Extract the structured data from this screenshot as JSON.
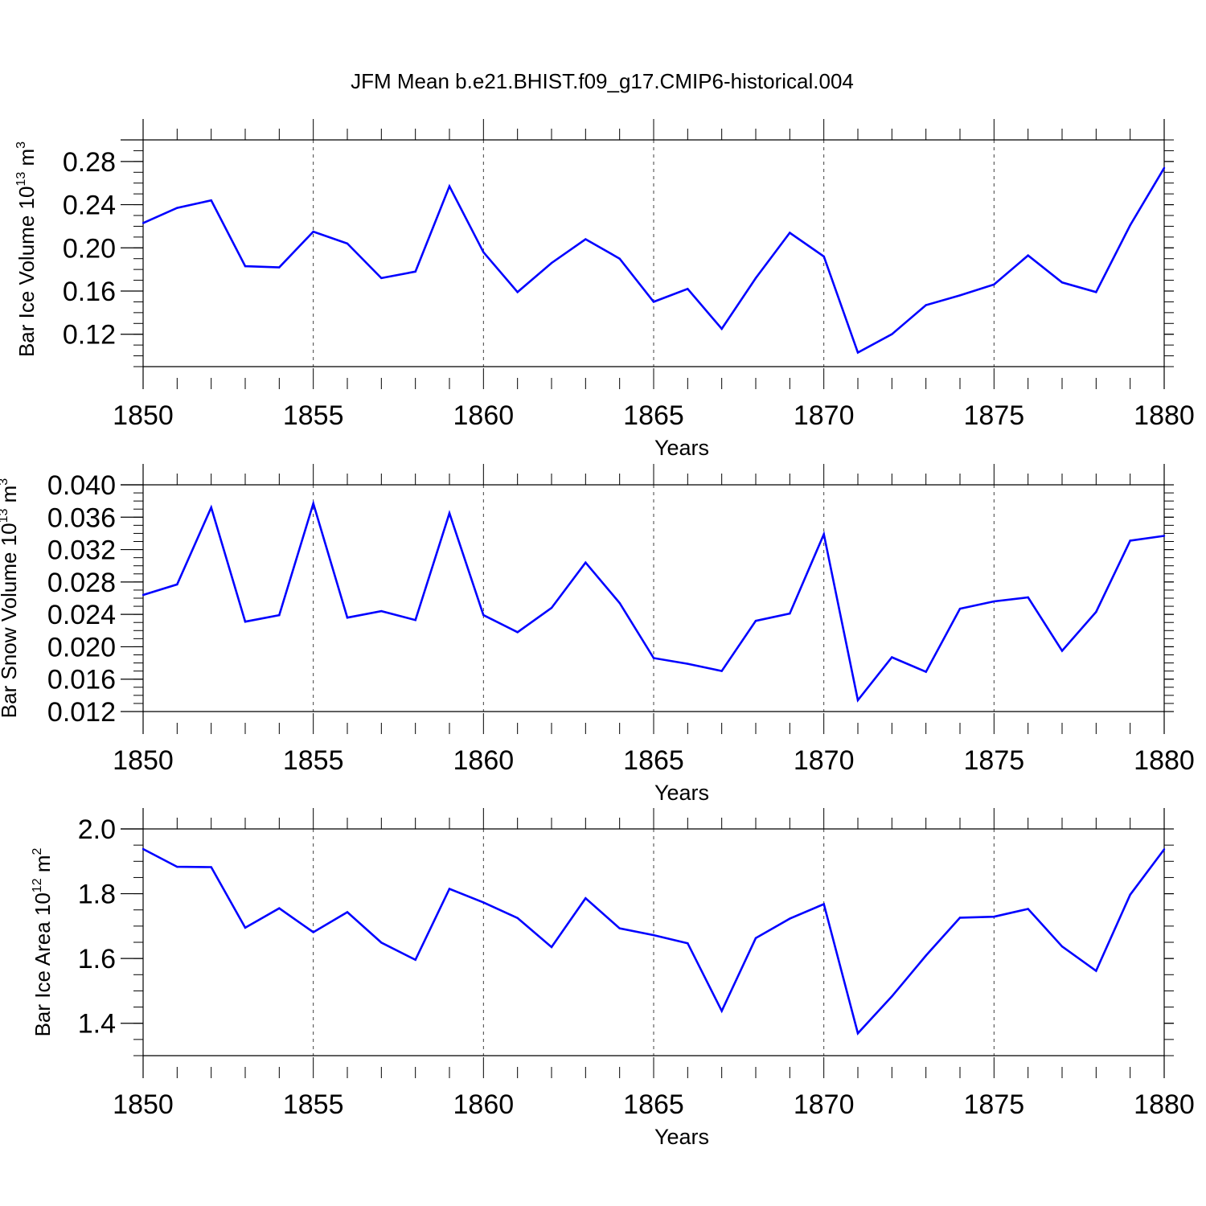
{
  "title": "JFM Mean b.e21.BHIST.f09_g17.CMIP6-historical.004",
  "line_color": "#0000ff",
  "chart_data": [
    {
      "type": "line",
      "ylabel": {
        "text": "Bar Ice Volume 10",
        "exp": "13",
        "unit": " m",
        "unit_exp": "3"
      },
      "xlabel": "Years",
      "xlim": [
        1850,
        1880
      ],
      "ylim": [
        0.09,
        0.3
      ],
      "y_ticks": [
        0.12,
        0.16,
        0.2,
        0.24,
        0.28
      ],
      "y_tick_labels": [
        "0.12",
        "0.16",
        "0.20",
        "0.24",
        "0.28"
      ],
      "x_ticks": [
        1850,
        1855,
        1860,
        1865,
        1870,
        1875,
        1880
      ],
      "x_tick_labels": [
        "1850",
        "1855",
        "1860",
        "1865",
        "1870",
        "1875",
        "1880"
      ],
      "x": [
        1850,
        1851,
        1852,
        1853,
        1854,
        1855,
        1856,
        1857,
        1858,
        1859,
        1860,
        1861,
        1862,
        1863,
        1864,
        1865,
        1866,
        1867,
        1868,
        1869,
        1870,
        1871,
        1872,
        1873,
        1874,
        1875,
        1876,
        1877,
        1878,
        1879,
        1880
      ],
      "values": [
        0.223,
        0.237,
        0.244,
        0.183,
        0.182,
        0.215,
        0.204,
        0.172,
        0.178,
        0.257,
        0.196,
        0.159,
        0.186,
        0.208,
        0.19,
        0.15,
        0.162,
        0.125,
        0.172,
        0.214,
        0.192,
        0.103,
        0.12,
        0.147,
        0.156,
        0.166,
        0.193,
        0.168,
        0.159,
        0.221,
        0.274
      ]
    },
    {
      "type": "line",
      "ylabel": {
        "text": "Bar Snow Volume 10",
        "exp": "13",
        "unit": " m",
        "unit_exp": "3"
      },
      "xlabel": "Years",
      "xlim": [
        1850,
        1880
      ],
      "ylim": [
        0.012,
        0.04
      ],
      "y_ticks": [
        0.012,
        0.016,
        0.02,
        0.024,
        0.028,
        0.032,
        0.036,
        0.04
      ],
      "y_tick_labels": [
        "0.012",
        "0.016",
        "0.020",
        "0.024",
        "0.028",
        "0.032",
        "0.036",
        "0.040"
      ],
      "x_ticks": [
        1850,
        1855,
        1860,
        1865,
        1870,
        1875,
        1880
      ],
      "x_tick_labels": [
        "1850",
        "1855",
        "1860",
        "1865",
        "1870",
        "1875",
        "1880"
      ],
      "x": [
        1850,
        1851,
        1852,
        1853,
        1854,
        1855,
        1856,
        1857,
        1858,
        1859,
        1860,
        1861,
        1862,
        1863,
        1864,
        1865,
        1866,
        1867,
        1868,
        1869,
        1870,
        1871,
        1872,
        1873,
        1874,
        1875,
        1876,
        1877,
        1878,
        1879,
        1880
      ],
      "values": [
        0.0264,
        0.0277,
        0.0372,
        0.0231,
        0.0239,
        0.0377,
        0.0236,
        0.0244,
        0.0233,
        0.0365,
        0.0239,
        0.0218,
        0.0248,
        0.0304,
        0.0254,
        0.0186,
        0.0179,
        0.017,
        0.0232,
        0.0241,
        0.0339,
        0.0134,
        0.0187,
        0.0169,
        0.0247,
        0.0256,
        0.0261,
        0.0195,
        0.0243,
        0.0331,
        0.0337
      ]
    },
    {
      "type": "line",
      "ylabel": {
        "text": "Bar Ice Area 10",
        "exp": "12",
        "unit": " m",
        "unit_exp": "2"
      },
      "xlabel": "Years",
      "xlim": [
        1850,
        1880
      ],
      "ylim": [
        1.3,
        2.0
      ],
      "y_ticks": [
        1.4,
        1.6,
        1.8,
        2.0
      ],
      "y_tick_labels": [
        "1.4",
        "1.6",
        "1.8",
        "2.0"
      ],
      "x_ticks": [
        1850,
        1855,
        1860,
        1865,
        1870,
        1875,
        1880
      ],
      "x_tick_labels": [
        "1850",
        "1855",
        "1860",
        "1865",
        "1870",
        "1875",
        "1880"
      ],
      "x": [
        1850,
        1851,
        1852,
        1853,
        1854,
        1855,
        1856,
        1857,
        1858,
        1859,
        1860,
        1861,
        1862,
        1863,
        1864,
        1865,
        1866,
        1867,
        1868,
        1869,
        1870,
        1871,
        1872,
        1873,
        1874,
        1875,
        1876,
        1877,
        1878,
        1879,
        1880
      ],
      "values": [
        1.938,
        1.883,
        1.882,
        1.695,
        1.755,
        1.681,
        1.743,
        1.649,
        1.596,
        1.815,
        1.773,
        1.725,
        1.635,
        1.786,
        1.693,
        1.672,
        1.647,
        1.438,
        1.663,
        1.723,
        1.768,
        1.369,
        1.483,
        1.609,
        1.726,
        1.729,
        1.753,
        1.637,
        1.562,
        1.797,
        1.937
      ]
    }
  ]
}
